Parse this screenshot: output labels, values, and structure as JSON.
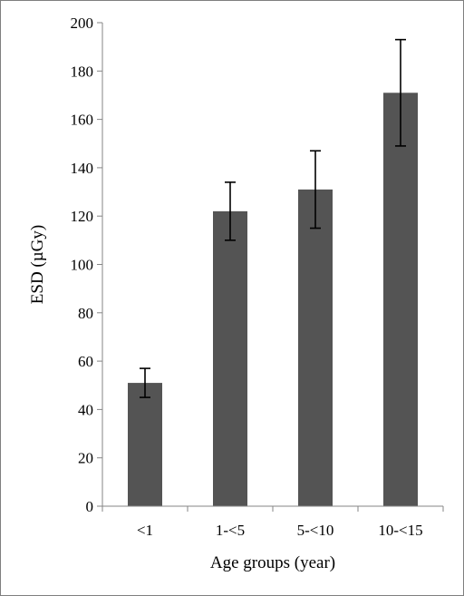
{
  "chart_data": {
    "type": "bar",
    "categories": [
      "<1",
      "1-<5",
      "5-<10",
      "10-<15"
    ],
    "values": [
      51,
      122,
      131,
      171
    ],
    "error_low": [
      45,
      110,
      115,
      149
    ],
    "error_high": [
      57,
      134,
      147,
      193
    ],
    "xlabel": "Age groups (year)",
    "ylabel": "ESD (µGy)",
    "ylim": [
      0,
      200
    ],
    "yticks": [
      0,
      20,
      40,
      60,
      80,
      100,
      120,
      140,
      160,
      180,
      200
    ],
    "grid": false,
    "legend": "none",
    "bar_color": "#545454"
  }
}
